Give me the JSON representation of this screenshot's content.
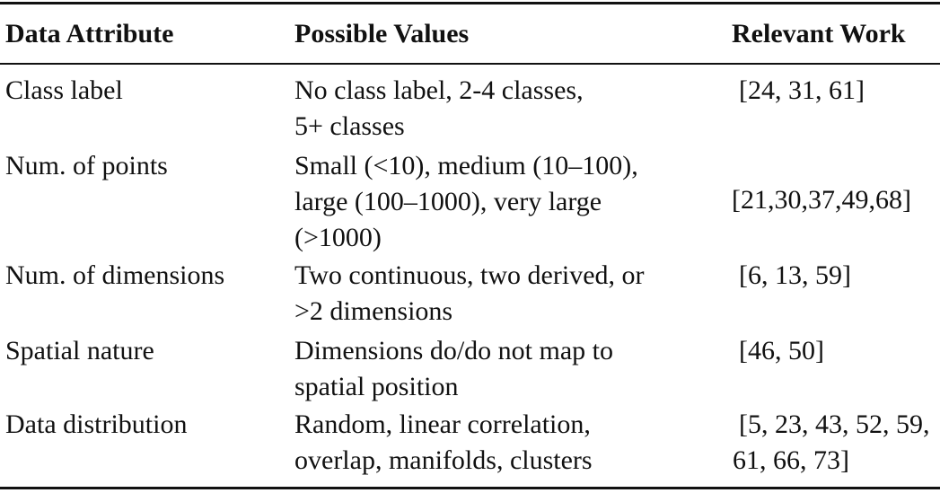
{
  "table": {
    "headers": [
      "Data Attribute",
      "Possible Values",
      "Relevant Work"
    ],
    "rows": [
      {
        "attribute": "Class label",
        "values": [
          "No class label, 2-4 classes,",
          "5+ classes"
        ],
        "work": [
          "[24, 31, 61]"
        ]
      },
      {
        "attribute": "Num. of points",
        "values": [
          "Small (<10), medium (10–100),",
          "large (100–1000), very large",
          "(>1000)"
        ],
        "work": [
          "[21,30,37,49,68]"
        ]
      },
      {
        "attribute": "Num. of dimensions",
        "values": [
          "Two continuous, two derived, or",
          ">2 dimensions"
        ],
        "work": [
          "[6, 13, 59]"
        ]
      },
      {
        "attribute": "Spatial nature",
        "values": [
          "Dimensions do/do not map to",
          "spatial position"
        ],
        "work": [
          "[46, 50]"
        ]
      },
      {
        "attribute": "Data distribution",
        "values": [
          "Random, linear correlation,",
          "overlap, manifolds, clusters"
        ],
        "work": [
          "[5, 23, 43, 52, 59,",
          "61, 66, 73]"
        ]
      }
    ]
  }
}
